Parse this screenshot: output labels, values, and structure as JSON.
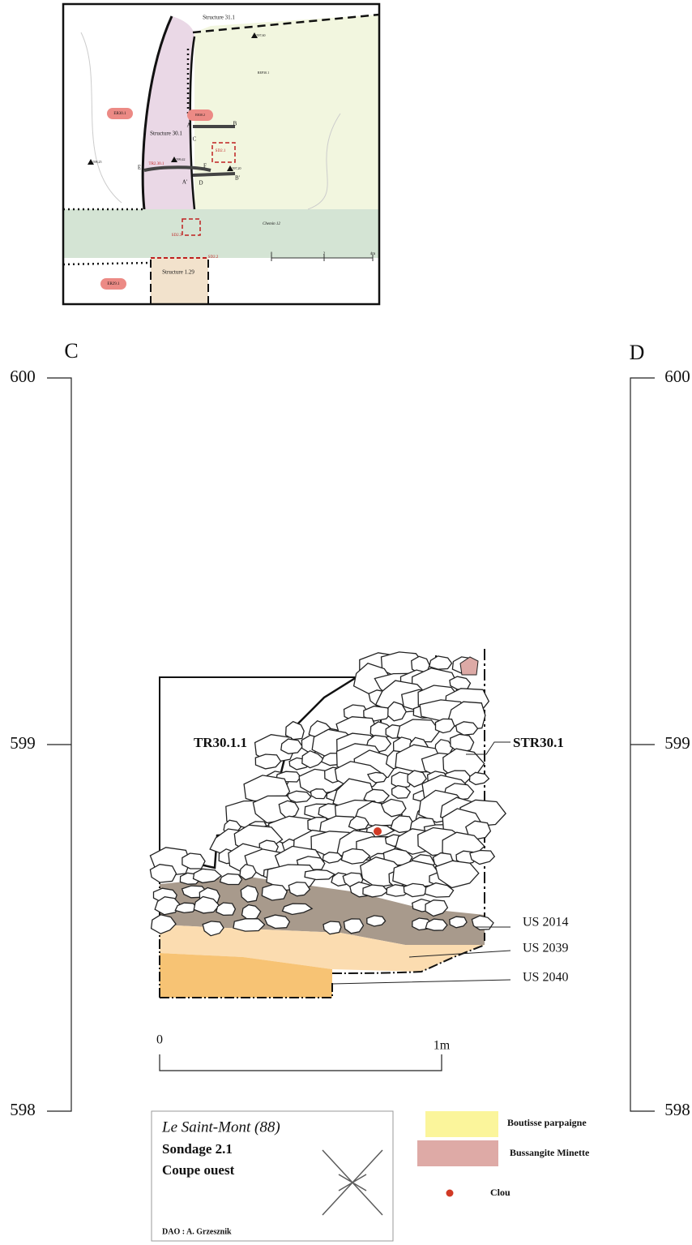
{
  "map": {
    "labels": [
      "Structure 31.1",
      "REP30.1",
      "ER30.1",
      "ER30.2",
      "Structure 30.1",
      "A",
      "B",
      "C",
      "D",
      "E",
      "F",
      "A'",
      "B'",
      "SD2.1",
      "TR2.30.1",
      "Chemin 12",
      "SD2.3",
      "SD2.2",
      "Structure 1.29",
      "ER29.1",
      "598,25",
      "599,42",
      "597,60",
      "597,20"
    ],
    "scale": [
      "0",
      "2",
      "4m"
    ]
  },
  "section": {
    "left_label": "C",
    "right_label": "D",
    "elevations": [
      "600",
      "599",
      "598"
    ],
    "zones": [
      "TR30.1.1",
      "STR30.1"
    ],
    "units": [
      "US 2014",
      "US 2039",
      "US 2040"
    ],
    "scale": [
      "0",
      "1m"
    ]
  },
  "cartouche": {
    "site": "Le Saint-Mont (88)",
    "sondage": "Sondage 2.1",
    "view": "Coupe ouest",
    "author": "DAO : A. Grzesznik"
  },
  "legend": [
    "Boutisse parpaigne",
    "Bussangite Minette",
    "Clou"
  ]
}
